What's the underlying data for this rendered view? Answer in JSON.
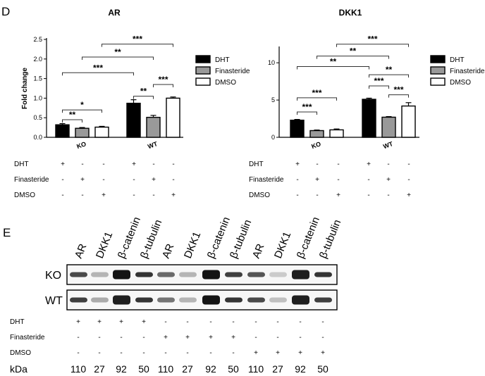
{
  "panel_d_label": "D",
  "panel_e_label": "E",
  "chart_data": [
    {
      "type": "bar",
      "title": "AR",
      "ylabel": "Fold change",
      "xlabel": "",
      "ylim": [
        0,
        2.5
      ],
      "yticks": [
        "0.0",
        "0.5",
        "1.0",
        "1.5",
        "2.0",
        "2.5"
      ],
      "ytick_values": [
        0,
        0.5,
        1.0,
        1.5,
        2.0,
        2.5
      ],
      "categories": [
        "KO",
        "WT"
      ],
      "series": [
        {
          "name": "DHT",
          "color": "#000000",
          "values": [
            0.32,
            0.87
          ],
          "errors": [
            0.03,
            0.09
          ]
        },
        {
          "name": "Finasteride",
          "color": "#999999",
          "values": [
            0.23,
            0.51
          ],
          "errors": [
            0.02,
            0.05
          ]
        },
        {
          "name": "DMSO",
          "color": "#ffffff",
          "values": [
            0.26,
            1.0
          ],
          "errors": [
            0.02,
            0.03
          ]
        }
      ],
      "legend_position": "right",
      "significance": [
        {
          "label": "**",
          "from": [
            0,
            0
          ],
          "to": [
            0,
            1
          ],
          "level": 0.45
        },
        {
          "label": "*",
          "from": [
            0,
            0
          ],
          "to": [
            0,
            2
          ],
          "level": 0.7
        },
        {
          "label": "**",
          "from": [
            1,
            0
          ],
          "to": [
            1,
            1
          ],
          "level": 1.05
        },
        {
          "label": "***",
          "from": [
            1,
            1
          ],
          "to": [
            1,
            2
          ],
          "level": 1.35
        },
        {
          "label": "***",
          "from": [
            0,
            0
          ],
          "to": [
            1,
            0
          ],
          "level": 1.65
        },
        {
          "label": "**",
          "from": [
            0,
            1
          ],
          "to": [
            1,
            1
          ],
          "level": 2.05
        },
        {
          "label": "***",
          "from": [
            0,
            2
          ],
          "to": [
            1,
            2
          ],
          "level": 2.38
        }
      ]
    },
    {
      "type": "bar",
      "title": "DKK1",
      "ylabel": "",
      "xlabel": "",
      "ylim": [
        0,
        12
      ],
      "yticks": [
        "0",
        "5",
        "10"
      ],
      "ytick_values": [
        0,
        5,
        10
      ],
      "categories": [
        "KO",
        "WT"
      ],
      "series": [
        {
          "name": "DHT",
          "color": "#000000",
          "values": [
            2.3,
            5.1
          ],
          "errors": [
            0.1,
            0.15
          ]
        },
        {
          "name": "Finasteride",
          "color": "#999999",
          "values": [
            0.9,
            2.7
          ],
          "errors": [
            0.08,
            0.08
          ]
        },
        {
          "name": "DMSO",
          "color": "#ffffff",
          "values": [
            1.0,
            4.2
          ],
          "errors": [
            0.12,
            0.45
          ]
        }
      ],
      "legend_position": "right",
      "significance": [
        {
          "label": "***",
          "from": [
            0,
            0
          ],
          "to": [
            0,
            1
          ],
          "level": 3.4
        },
        {
          "label": "***",
          "from": [
            0,
            0
          ],
          "to": [
            0,
            2
          ],
          "level": 5.3
        },
        {
          "label": "***",
          "from": [
            1,
            0
          ],
          "to": [
            1,
            1
          ],
          "level": 6.9
        },
        {
          "label": "***",
          "from": [
            1,
            1
          ],
          "to": [
            1,
            2
          ],
          "level": 5.7
        },
        {
          "label": "**",
          "from": [
            1,
            0
          ],
          "to": [
            1,
            2
          ],
          "level": 8.4
        },
        {
          "label": "**",
          "from": [
            0,
            0
          ],
          "to": [
            1,
            0
          ],
          "level": 9.5
        },
        {
          "label": "**",
          "from": [
            0,
            1
          ],
          "to": [
            1,
            1
          ],
          "level": 10.9
        },
        {
          "label": "***",
          "from": [
            0,
            2
          ],
          "to": [
            1,
            2
          ],
          "level": 12.5
        }
      ]
    }
  ],
  "treatment_table_d": {
    "rows": [
      {
        "name": "DHT",
        "signs": [
          "+",
          "-",
          "-",
          "+",
          "-",
          "-"
        ]
      },
      {
        "name": "Finasteride",
        "signs": [
          "-",
          "+",
          "-",
          "-",
          "+",
          "-"
        ]
      },
      {
        "name": "DMSO",
        "signs": [
          "-",
          "-",
          "+",
          "-",
          "-",
          "+"
        ]
      }
    ]
  },
  "blot": {
    "lane_labels": [
      "AR",
      "DKK1",
      "β-catenin",
      "β-tubulin",
      "AR",
      "DKK1",
      "β-catenin",
      "β-tubulin",
      "AR",
      "DKK1",
      "β-catenin",
      "β-tubulin"
    ],
    "rows": [
      "KO",
      "WT"
    ],
    "treatments": [
      {
        "name": "DHT",
        "signs": [
          "+",
          "+",
          "+",
          "+",
          "-",
          "-",
          "-",
          "-",
          "-",
          "-",
          "-",
          "-"
        ]
      },
      {
        "name": "Finasteride",
        "signs": [
          "-",
          "-",
          "-",
          "-",
          "+",
          "+",
          "+",
          "+",
          "-",
          "-",
          "-",
          "-"
        ]
      },
      {
        "name": "DMSO",
        "signs": [
          "-",
          "-",
          "-",
          "-",
          "-",
          "-",
          "-",
          "-",
          "+",
          "+",
          "+",
          "+"
        ]
      }
    ],
    "kda_label": "kDa",
    "kda_values": [
      "110",
      "27",
      "92",
      "50",
      "110",
      "27",
      "92",
      "50",
      "110",
      "27",
      "92",
      "50"
    ]
  }
}
